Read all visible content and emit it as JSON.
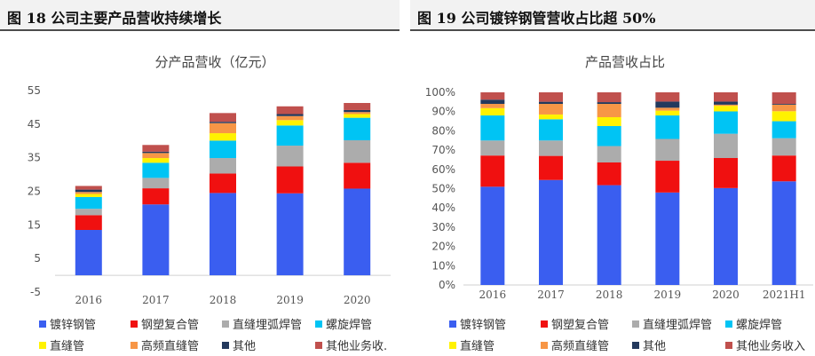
{
  "panels": [
    {
      "figure_title": "图 18 公司主要产品营收持续增长"
    },
    {
      "figure_title": "图 19 公司镀锌钢管营收占比超 50%"
    }
  ],
  "chart_data": [
    {
      "type": "bar",
      "stacked": true,
      "title": "分产品营收（亿元）",
      "categories": [
        "2016",
        "2017",
        "2018",
        "2019",
        "2020"
      ],
      "ylim": [
        -5,
        55
      ],
      "yticks": [
        -5,
        5,
        15,
        25,
        35,
        45,
        55
      ],
      "ytick_labels": [
        "-5",
        "5",
        "15",
        "25",
        "35",
        "45",
        "55"
      ],
      "grid": false,
      "legend_position": "bottom",
      "series": [
        {
          "name": "镀锌钢管",
          "color": "#3a5ef0",
          "values": [
            13.5,
            21.1,
            24.5,
            24.4,
            25.8
          ]
        },
        {
          "name": "钢塑复合管",
          "color": "#f01010",
          "values": [
            4.4,
            4.8,
            5.8,
            8.0,
            7.7
          ]
        },
        {
          "name": "直缝埋弧焊管",
          "color": "#acacac",
          "values": [
            1.9,
            3.1,
            4.6,
            6.2,
            6.7
          ]
        },
        {
          "name": "螺旋焊管",
          "color": "#00c4f4",
          "values": [
            3.5,
            4.5,
            5.2,
            6.0,
            6.7
          ]
        },
        {
          "name": "直缝管",
          "color": "#fff200",
          "values": [
            0.9,
            1.4,
            2.2,
            1.6,
            1.1
          ]
        },
        {
          "name": "高频直缝管",
          "color": "#f79646",
          "values": [
            0.6,
            1.5,
            3.0,
            1.2,
            0.6
          ]
        },
        {
          "name": "其他",
          "color": "#23395d",
          "values": [
            0.7,
            0.4,
            0.4,
            0.6,
            0.6
          ]
        },
        {
          "name": "其他业务收入",
          "color": "#c0504d",
          "values": [
            1.1,
            2.0,
            2.6,
            2.3,
            2.1
          ]
        }
      ]
    },
    {
      "type": "bar",
      "stacked": true,
      "title": "产品营收占比",
      "categories": [
        "2016",
        "2017",
        "2018",
        "2019",
        "2020",
        "2021H1"
      ],
      "ylim": [
        0,
        100
      ],
      "yticks": [
        0,
        10,
        20,
        30,
        40,
        50,
        60,
        70,
        80,
        90,
        100
      ],
      "ytick_labels": [
        "0%",
        "10%",
        "20%",
        "30%",
        "40%",
        "50%",
        "60%",
        "70%",
        "80%",
        "90%",
        "100%"
      ],
      "grid": false,
      "legend_position": "bottom",
      "series": [
        {
          "name": "镀锌钢管",
          "color": "#3a5ef0",
          "values": [
            51,
            54.5,
            51.8,
            48,
            50.3,
            53.8
          ]
        },
        {
          "name": "钢塑复合管",
          "color": "#f01010",
          "values": [
            16.2,
            12.5,
            11.8,
            16.5,
            15.6,
            13.4
          ]
        },
        {
          "name": "直缝埋弧焊管",
          "color": "#acacac",
          "values": [
            7.8,
            8,
            8.5,
            11.3,
            12.6,
            9
          ]
        },
        {
          "name": "螺旋焊管",
          "color": "#00c4f4",
          "values": [
            13,
            11,
            10.4,
            12.2,
            11.6,
            8.8
          ]
        },
        {
          "name": "直缝管",
          "color": "#fff200",
          "values": [
            3.8,
            2.5,
            4.6,
            2.5,
            2.9,
            5.2
          ]
        },
        {
          "name": "高频直缝管",
          "color": "#f79646",
          "values": [
            2.2,
            5.5,
            6.9,
            1.5,
            0.6,
            3.4
          ]
        },
        {
          "name": "其他",
          "color": "#23395d",
          "values": [
            2.2,
            1.1,
            0.9,
            3.2,
            1.6,
            0.4
          ]
        },
        {
          "name": "其他业务收入",
          "color": "#c0504d",
          "values": [
            3.8,
            4.9,
            5.1,
            4.8,
            4.8,
            6
          ]
        }
      ]
    }
  ],
  "legends": [
    [
      "镀锌钢管",
      "钢塑复合管",
      "直缝埋弧焊管",
      "螺旋焊管",
      "直缝管",
      "高频直缝管",
      "其他",
      "其他业务收."
    ],
    [
      "镀锌钢管",
      "钢塑复合管",
      "直缝埋弧焊管",
      "螺旋焊管",
      "直缝管",
      "高频直缝管",
      "其他",
      "其他业务收入"
    ]
  ]
}
